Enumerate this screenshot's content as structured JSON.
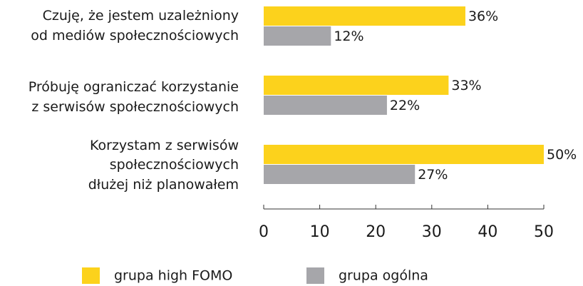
{
  "chart_data": {
    "type": "bar",
    "orientation": "horizontal",
    "categories": [
      "Czuję, że jestem uzależniony\nod mediów społecznościowych",
      "Próbuję ograniczać korzystanie\nz serwisów społecznościowych",
      "Korzystam z serwisów\nspołecznościowych\ndłużej niż planowałem"
    ],
    "series": [
      {
        "name": "grupa high FOMO",
        "color": "#fcd21c",
        "values": [
          36,
          33,
          50
        ],
        "value_labels": [
          "36%",
          "33%",
          "50%"
        ]
      },
      {
        "name": "grupa ogólna",
        "color": "#a6a6aa",
        "values": [
          12,
          22,
          27
        ],
        "value_labels": [
          "12%",
          "22%",
          "27%"
        ]
      }
    ],
    "xlim": [
      0,
      50
    ],
    "xticks": [
      0,
      10,
      20,
      30,
      40,
      50
    ]
  }
}
